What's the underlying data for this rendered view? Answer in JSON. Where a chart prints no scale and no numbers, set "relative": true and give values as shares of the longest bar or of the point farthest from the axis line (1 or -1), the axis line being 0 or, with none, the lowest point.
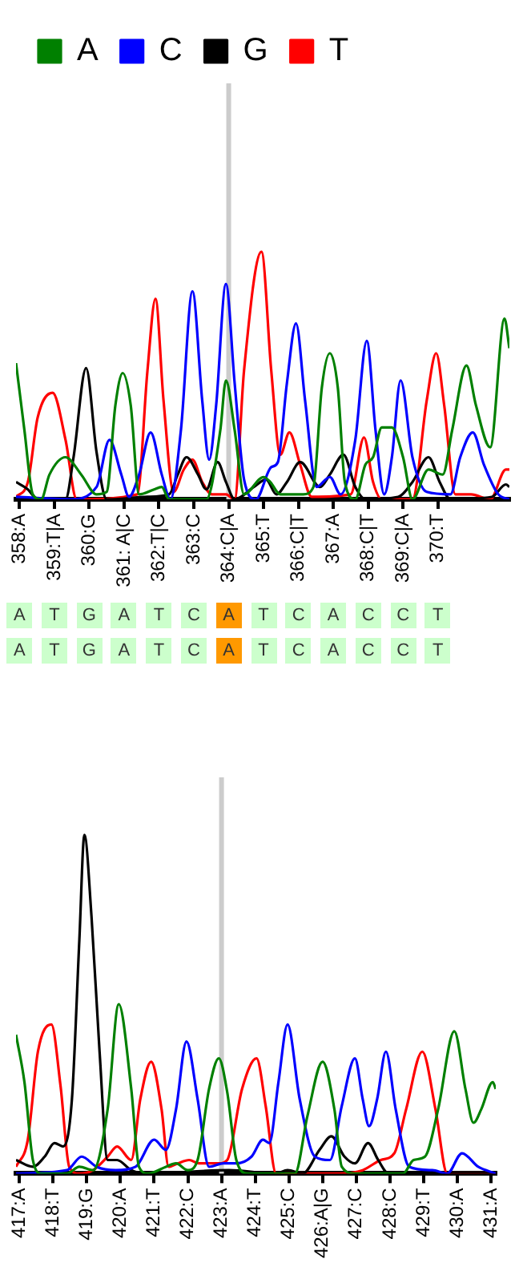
{
  "chart_data": [
    {
      "type": "line",
      "relative": true,
      "legend": "top",
      "grid": false,
      "marker": "none",
      "line_style": "solid",
      "xlim": [
        357.9,
        372.05
      ],
      "xticks": [
        {
          "value": 358,
          "label": "358:A"
        },
        {
          "value": 359,
          "label": "359:T|A"
        },
        {
          "value": 360,
          "label": "360:G"
        },
        {
          "value": 361,
          "label": "361: A|C"
        },
        {
          "value": 362,
          "label": "362:T|C"
        },
        {
          "value": 363,
          "label": "363:C"
        },
        {
          "value": 364,
          "label": "364:C|A"
        },
        {
          "value": 365,
          "label": "365:T"
        },
        {
          "value": 366,
          "label": "366:C|T"
        },
        {
          "value": 367,
          "label": "367:A"
        },
        {
          "value": 368,
          "label": "368:C|T"
        },
        {
          "value": 369,
          "label": "369:C|A"
        },
        {
          "value": 370,
          "label": "370:T"
        }
      ],
      "ref_lines": [
        {
          "axis": "x",
          "value": 364,
          "color": "#cccccc"
        }
      ],
      "annotations": [
        "A T G A T C A T C A C C T",
        "A T G A T C A T C A C C T"
      ],
      "series": [
        {
          "name": "A",
          "color": "#008000",
          "x": [
            357.9,
            358.14,
            358.38,
            358.62,
            358.86,
            359.32,
            359.77,
            360.21,
            360.5,
            360.75,
            360.96,
            361.19,
            361.43,
            361.86,
            362.08,
            362.29,
            362.83,
            363.36,
            363.76,
            363.92,
            364.17,
            364.44,
            365,
            365.19,
            365.48,
            366.14,
            366.43,
            366.67,
            366.9,
            367.13,
            367.33,
            367.63,
            367.92,
            368.14,
            368.39,
            368.68,
            369,
            369.27,
            369.73,
            370.14,
            370.41,
            370.82,
            371.09,
            371.5,
            371.91,
            372.05
          ],
          "values": [
            0.55,
            0.28,
            0.02,
            0,
            0.1,
            0.17,
            0.1,
            0.02,
            0.03,
            0.38,
            0.51,
            0.38,
            0.02,
            0.04,
            0.05,
            0,
            0,
            0,
            0.28,
            0.48,
            0.28,
            0.02,
            0.09,
            0.07,
            0.02,
            0.02,
            0.05,
            0.45,
            0.59,
            0.45,
            0.07,
            0,
            0.14,
            0.17,
            0.29,
            0.29,
            0.17,
            0,
            0.12,
            0.1,
            0.28,
            0.54,
            0.38,
            0.21,
            0.73,
            0.61
          ]
        },
        {
          "name": "C",
          "color": "#0000ff",
          "x": [
            357.9,
            359.45,
            360.21,
            360.58,
            360.92,
            361.14,
            361.43,
            361.76,
            362.08,
            362.33,
            362.63,
            362.96,
            363.24,
            363.44,
            363.64,
            363.92,
            364.17,
            364.44,
            364.78,
            365.22,
            365.41,
            365.67,
            365.93,
            366.19,
            366.52,
            366.9,
            367.21,
            367.63,
            367.96,
            368.21,
            368.46,
            368.68,
            368.93,
            369.27,
            369.68,
            370.36,
            370.64,
            371,
            371.32,
            371.73,
            372.05
          ],
          "values": [
            0.01,
            0,
            0.05,
            0.24,
            0.1,
            0.01,
            0.1,
            0.27,
            0.1,
            0,
            0.28,
            0.84,
            0.4,
            0.16,
            0.38,
            0.87,
            0.47,
            0.08,
            0,
            0.13,
            0.15,
            0.47,
            0.71,
            0.4,
            0.05,
            0.09,
            0.02,
            0.24,
            0.64,
            0.28,
            0.02,
            0.17,
            0.48,
            0.17,
            0.03,
            0.02,
            0.17,
            0.27,
            0.14,
            0.02,
            0
          ]
        },
        {
          "name": "G",
          "color": "#000000",
          "x": [
            357.9,
            358.24,
            358.52,
            359.32,
            359.55,
            359.91,
            360.21,
            360.5,
            361.67,
            362.29,
            362.54,
            362.79,
            363.12,
            363.36,
            363.68,
            363.92,
            364.17,
            364.72,
            365.07,
            365.37,
            365.67,
            366.05,
            366.62,
            366.9,
            367.29,
            367.63,
            367.92,
            368.86,
            369.27,
            369.73,
            370.05,
            370.36,
            371.55,
            371.95,
            372.05
          ],
          "values": [
            0.07,
            0.04,
            0,
            0,
            0.17,
            0.53,
            0.19,
            0,
            0.01,
            0.02,
            0.1,
            0.17,
            0.1,
            0.04,
            0.15,
            0.07,
            0,
            0.05,
            0.08,
            0.02,
            0.07,
            0.15,
            0.05,
            0.1,
            0.18,
            0.05,
            0,
            0.01,
            0.07,
            0.17,
            0.07,
            0,
            0.01,
            0.06,
            0.05
          ]
        },
        {
          "name": "T",
          "color": "#ff0000",
          "x": [
            357.9,
            358.24,
            358.52,
            358.95,
            359.32,
            359.64,
            361.38,
            361.67,
            361.9,
            362.13,
            362.42,
            362.71,
            362.96,
            363.24,
            363.52,
            363.92,
            364.17,
            364.44,
            364.94,
            365.22,
            365.48,
            365.74,
            366.05,
            366.38,
            367.5,
            367.88,
            368.14,
            368.39,
            369.27,
            369.68,
            369.95,
            370.18,
            370.5,
            370.95,
            371.5,
            371.95,
            372.05
          ],
          "values": [
            0.01,
            0.07,
            0.33,
            0.43,
            0.24,
            0,
            0.02,
            0.52,
            0.81,
            0.4,
            0.03,
            0.12,
            0.16,
            0.07,
            0.02,
            0.02,
            0,
            0.52,
            1,
            0.52,
            0.18,
            0.27,
            0.14,
            0.01,
            0.02,
            0.25,
            0.07,
            0,
            0,
            0.4,
            0.59,
            0.38,
            0.02,
            0.02,
            0,
            0.12,
            0.12
          ]
        }
      ]
    },
    {
      "type": "line",
      "relative": true,
      "grid": false,
      "marker": "none",
      "line_style": "solid",
      "xlim": [
        416.9,
        431.14
      ],
      "xticks": [
        {
          "value": 417,
          "label": "417:A"
        },
        {
          "value": 418,
          "label": "418:T"
        },
        {
          "value": 419,
          "label": "419:G"
        },
        {
          "value": 420,
          "label": "420:A"
        },
        {
          "value": 421,
          "label": "421:T"
        },
        {
          "value": 422,
          "label": "422:C"
        },
        {
          "value": 423,
          "label": "423:A"
        },
        {
          "value": 424,
          "label": "424:T"
        },
        {
          "value": 425,
          "label": "425:C"
        },
        {
          "value": 426,
          "label": "426:A|G"
        },
        {
          "value": 427,
          "label": "427:C"
        },
        {
          "value": 428,
          "label": "428:C"
        },
        {
          "value": 429,
          "label": "429:T"
        },
        {
          "value": 430,
          "label": "430:A"
        },
        {
          "value": 431,
          "label": "431:A"
        }
      ],
      "ref_lines": [
        {
          "axis": "x",
          "value": 423,
          "color": "#cccccc"
        }
      ],
      "series": [
        {
          "color": "#008000",
          "x": [
            416.9,
            417.15,
            417.4,
            417.65,
            418.41,
            418.78,
            419.19,
            419.62,
            419.95,
            420.32,
            420.55,
            420.82,
            421.35,
            421.65,
            422,
            422.29,
            422.63,
            422.92,
            423.17,
            423.44,
            423.78,
            425.18,
            425.55,
            426,
            426.35,
            426.57,
            426.96,
            428.39,
            428.7,
            429.04,
            429.43,
            429.91,
            430.24,
            430.48,
            430.71,
            431.05,
            431.14
          ],
          "values": [
            0.41,
            0.27,
            0.04,
            0,
            0,
            0.02,
            0.01,
            0.19,
            0.5,
            0.25,
            0.02,
            0,
            0.02,
            0.03,
            0.01,
            0.04,
            0.25,
            0.34,
            0.24,
            0.04,
            0,
            0,
            0.17,
            0.33,
            0.19,
            0.02,
            0,
            0,
            0.04,
            0.05,
            0.19,
            0.42,
            0.25,
            0.15,
            0.19,
            0.27,
            0.25
          ]
        },
        {
          "color": "#0000ff",
          "x": [
            416.9,
            418.41,
            418.85,
            419.29,
            419.86,
            420.45,
            421,
            421.35,
            421.65,
            421.96,
            422.29,
            422.63,
            423.06,
            423.44,
            423.89,
            424.23,
            424.42,
            424.69,
            424.96,
            425.32,
            425.77,
            426.22,
            426.57,
            426.96,
            427.19,
            427.38,
            427.62,
            427.88,
            428.17,
            428.57,
            429.26,
            429.7,
            430.14,
            430.62,
            431.14
          ],
          "values": [
            0,
            0.01,
            0.05,
            0.02,
            0.01,
            0.02,
            0.1,
            0.07,
            0.19,
            0.39,
            0.22,
            0.02,
            0.03,
            0.03,
            0.05,
            0.1,
            0.09,
            0.27,
            0.44,
            0.22,
            0.05,
            0.04,
            0.2,
            0.34,
            0.22,
            0.14,
            0.22,
            0.36,
            0.19,
            0.02,
            0.01,
            0,
            0.06,
            0.02,
            0
          ]
        },
        {
          "color": "#000000",
          "x": [
            416.9,
            417.4,
            417.75,
            418.04,
            418.3,
            418.56,
            418.78,
            418.93,
            419.14,
            419.38,
            419.62,
            419.9,
            420.32,
            420.77,
            423.22,
            424.62,
            424.96,
            425.41,
            425.91,
            426.26,
            426.65,
            426.96,
            427.35,
            427.65,
            427.96,
            431.14
          ],
          "values": [
            0.04,
            0.02,
            0.05,
            0.09,
            0.08,
            0.22,
            0.69,
            1,
            0.76,
            0.36,
            0.04,
            0.04,
            0.01,
            0,
            0.01,
            0,
            0.01,
            0,
            0.07,
            0.11,
            0.05,
            0.03,
            0.09,
            0.04,
            0,
            0
          ]
        },
        {
          "color": "#ff0000",
          "x": [
            416.9,
            417.25,
            417.55,
            417.95,
            418.22,
            418.48,
            418.78,
            419.19,
            419.62,
            419.9,
            420.32,
            420.59,
            420.91,
            421.22,
            421.43,
            421.7,
            422.04,
            422.33,
            422.92,
            423.17,
            423.61,
            424.04,
            424.31,
            424.62,
            425.18,
            426.52,
            427.19,
            427.73,
            428.13,
            428.48,
            428.96,
            429.35,
            429.7,
            431.14
          ],
          "values": [
            0.02,
            0.1,
            0.36,
            0.44,
            0.26,
            0.02,
            0,
            0.01,
            0.05,
            0.08,
            0.04,
            0.22,
            0.33,
            0.19,
            0.02,
            0.03,
            0.04,
            0.03,
            0.03,
            0.04,
            0.25,
            0.34,
            0.2,
            0,
            0,
            0,
            0.01,
            0.04,
            0.06,
            0.19,
            0.36,
            0.19,
            0,
            0
          ]
        }
      ]
    }
  ]
}
